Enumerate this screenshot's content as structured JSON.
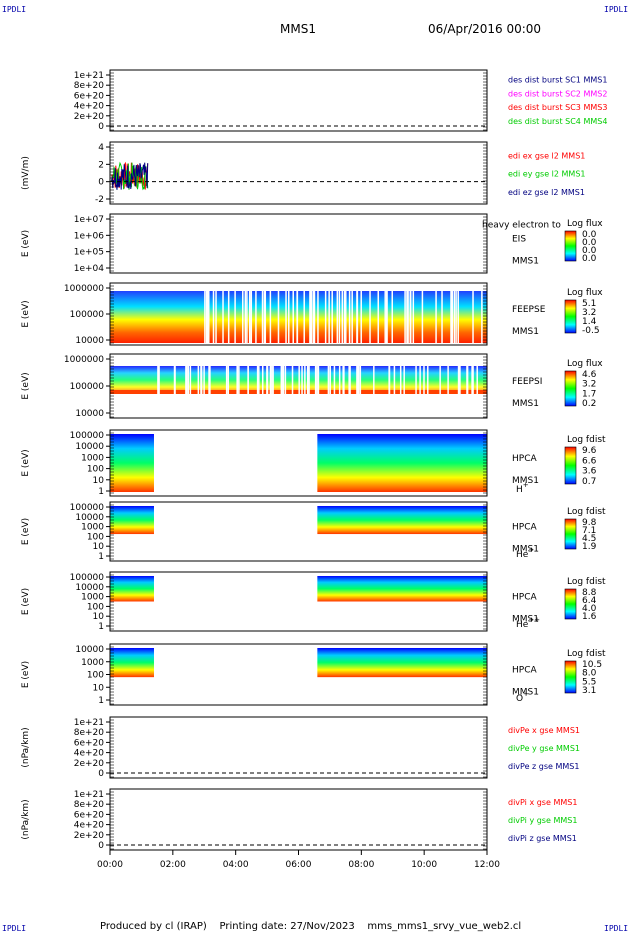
{
  "header": {
    "corner_label": "IPDLI",
    "spacecraft": "MMS1",
    "date_time": "06/Apr/2016 00:00"
  },
  "footer": {
    "text": "Produced by cl (IRAP)    Printing date: 27/Nov/2023    mms_mms1_srvy_vue_web2.cl"
  },
  "colors": {
    "accent": "#0000aa",
    "mms1": "#000080",
    "mms2": "#ff00ff",
    "mms3": "#ff0000",
    "mms4": "#00cc00"
  },
  "chart_data": {
    "type": "multi-panel time series / spectrograms",
    "x_ticks": [
      "00:00",
      "02:00",
      "04:00",
      "06:00",
      "08:00",
      "10:00",
      "12:00"
    ],
    "x_range_hours": [
      0,
      12
    ],
    "panels": [
      {
        "id": "p1",
        "ylabel": "",
        "ticks": [
          "1e+21",
          "8e+20",
          "6e+20",
          "4e+20",
          "2e+20",
          "0"
        ],
        "legend": [
          {
            "text": "des dist burst SC1 MMS1",
            "color": "#000080"
          },
          {
            "text": "des dist burst SC2 MMS2",
            "color": "#ff00ff"
          },
          {
            "text": "des dist burst SC3 MMS3",
            "color": "#ff0000"
          },
          {
            "text": "des dist burst SC4 MMS4",
            "color": "#00cc00"
          }
        ]
      },
      {
        "id": "p2",
        "ylabel": "(mV/m)",
        "ticks": [
          "4",
          "2",
          "0",
          "-2"
        ],
        "legend": [
          {
            "text": "edi ex gse l2 MMS1",
            "color": "#ff0000"
          },
          {
            "text": "edi ey gse l2 MMS1",
            "color": "#00cc00"
          },
          {
            "text": "edi ez gse l2 MMS1",
            "color": "#000080"
          }
        ],
        "data_hours": [
          0.05,
          1.2
        ]
      },
      {
        "id": "p3",
        "ylabel": "E (eV)",
        "ticks": [
          "1e+07",
          "1e+06",
          "1e+05",
          "1e+04"
        ],
        "inst": [
          "EIS",
          "MMS1"
        ],
        "overlay": "heavy electron to",
        "cbar_title": "Log flux",
        "cbar_ticks": [
          "0.0",
          "0.0",
          "0.0",
          "0.0"
        ]
      },
      {
        "id": "p4",
        "ylabel": "E (eV)",
        "ticks": [
          "1000000",
          "100000",
          "10000"
        ],
        "inst": [
          "FEEPSE",
          "MMS1"
        ],
        "cbar_title": "Log flux",
        "cbar_ticks": [
          "5.1",
          "3.2",
          "1.4",
          "-0.5"
        ]
      },
      {
        "id": "p5",
        "ylabel": "E (eV)",
        "ticks": [
          "1000000",
          "100000",
          "10000"
        ],
        "inst": [
          "FEEPSI",
          "MMS1"
        ],
        "cbar_title": "Log flux",
        "cbar_ticks": [
          "4.6",
          "3.2",
          "1.7",
          "0.2"
        ]
      },
      {
        "id": "p6",
        "ylabel": "E (eV)",
        "ticks": [
          "100000",
          "10000",
          "1000",
          "100",
          "10",
          "1"
        ],
        "inst": [
          "HPCA",
          "MMS1"
        ],
        "species": "H",
        "charge": "+",
        "cbar_title": "Log fdist",
        "cbar_ticks": [
          "9.6",
          "6.6",
          "3.6",
          "0.7"
        ]
      },
      {
        "id": "p7",
        "ylabel": "E (eV)",
        "ticks": [
          "100000",
          "10000",
          "1000",
          "100",
          "10",
          "1"
        ],
        "inst": [
          "HPCA",
          "MMS1"
        ],
        "species": "He",
        "charge": "+",
        "cbar_title": "Log fdist",
        "cbar_ticks": [
          "9.8",
          "7.1",
          "4.5",
          "1.9"
        ]
      },
      {
        "id": "p8",
        "ylabel": "E (eV)",
        "ticks": [
          "100000",
          "10000",
          "1000",
          "100",
          "10",
          "1"
        ],
        "inst": [
          "HPCA",
          "MMS1"
        ],
        "species": "He",
        "charge": "++",
        "cbar_title": "Log fdist",
        "cbar_ticks": [
          "8.8",
          "6.4",
          "4.0",
          "1.6"
        ]
      },
      {
        "id": "p9",
        "ylabel": "E (eV)",
        "ticks": [
          "10000",
          "1000",
          "100",
          "10",
          "1"
        ],
        "inst": [
          "HPCA",
          "MMS1"
        ],
        "species": "O",
        "charge": "+",
        "cbar_title": "Log fdist",
        "cbar_ticks": [
          "10.5",
          "8.0",
          "5.5",
          "3.1"
        ]
      },
      {
        "id": "p10",
        "ylabel": "(nPa/km)",
        "ticks": [
          "1e+21",
          "8e+20",
          "6e+20",
          "4e+20",
          "2e+20",
          "0"
        ],
        "legend": [
          {
            "text": "divPe x gse MMS1",
            "color": "#ff0000"
          },
          {
            "text": "divPe y gse MMS1",
            "color": "#00cc00"
          },
          {
            "text": "divPe z gse MMS1",
            "color": "#000080"
          }
        ]
      },
      {
        "id": "p11",
        "ylabel": "(nPa/km)",
        "ticks": [
          "1e+21",
          "8e+20",
          "6e+20",
          "4e+20",
          "2e+20",
          "0"
        ],
        "legend": [
          {
            "text": "divPi x gse MMS1",
            "color": "#ff0000"
          },
          {
            "text": "divPi y gse MMS1",
            "color": "#00cc00"
          },
          {
            "text": "divPi z gse MMS1",
            "color": "#000080"
          }
        ]
      }
    ]
  }
}
